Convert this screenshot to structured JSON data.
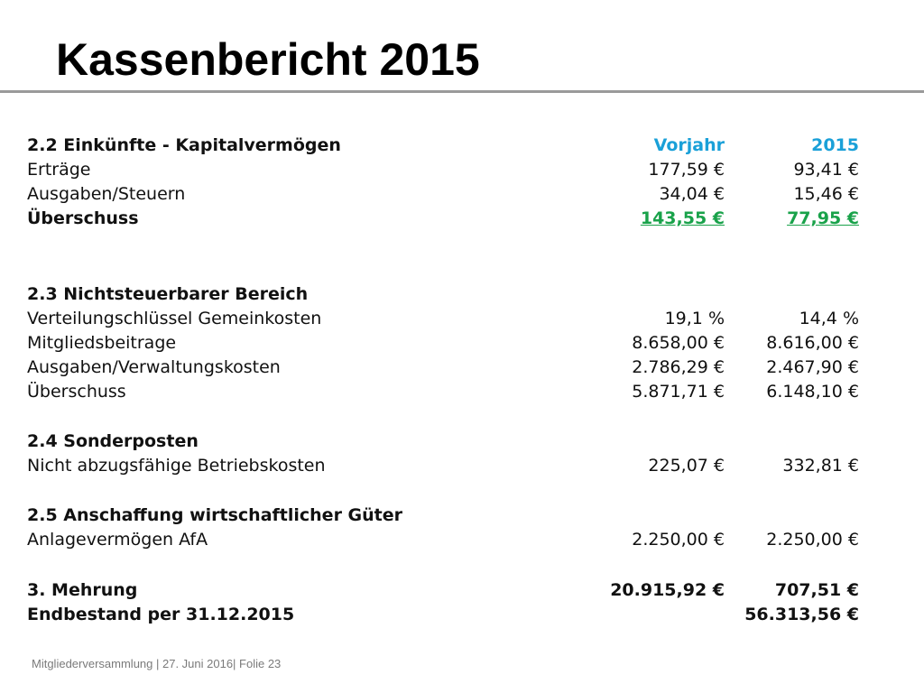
{
  "title": "Kassenbericht 2015",
  "colors": {
    "accent_blue": "#1aa0d8",
    "accent_green": "#19a24a",
    "rule_gray": "#9a9a9a"
  },
  "section_22": {
    "heading": "2.2 Einkünfte - Kapitalvermögen",
    "col_prev": "Vorjahr",
    "col_curr": "2015",
    "rows": [
      {
        "label": "Erträge",
        "prev": "177,59 €",
        "curr": "93,41 €"
      },
      {
        "label": "Ausgaben/Steuern",
        "prev": "34,04 €",
        "curr": "15,46 €"
      },
      {
        "label": "Überschuss",
        "prev": "143,55 €",
        "curr": "77,95 €"
      }
    ]
  },
  "section_23": {
    "heading": "2.3 Nichtsteuerbarer Bereich",
    "rows": [
      {
        "label": "Verteilungschlüssel Gemeinkosten",
        "prev": "19,1 %",
        "curr": "14,4 %"
      },
      {
        "label": "Mitgliedsbeitrage",
        "prev": "8.658,00 €",
        "curr": "8.616,00 €"
      },
      {
        "label": "Ausgaben/Verwaltungskosten",
        "prev": "2.786,29 €",
        "curr": "2.467,90 €"
      },
      {
        "label": "Überschuss",
        "prev": "5.871,71 €",
        "curr": "6.148,10 €"
      }
    ]
  },
  "section_24": {
    "heading": "2.4 Sonderposten",
    "rows": [
      {
        "label": "Nicht abzugsfähige Betriebskosten",
        "prev": "225,07 €",
        "curr": "332,81 €"
      }
    ]
  },
  "section_25": {
    "heading": "2.5 Anschaffung wirtschaftlicher Güter",
    "rows": [
      {
        "label": "Anlagevermögen AfA",
        "prev": "2.250,00 €",
        "curr": "2.250,00 €"
      }
    ]
  },
  "totals": {
    "mehrung": {
      "label": "3. Mehrung",
      "prev": "20.915,92 €",
      "curr": "707,51 €"
    },
    "endbestand": {
      "label": "Endbestand per 31.12.2015",
      "curr": "56.313,56 €"
    }
  },
  "footer": "Mitgliederversammlung | 27. Juni 2016| Folie  23"
}
